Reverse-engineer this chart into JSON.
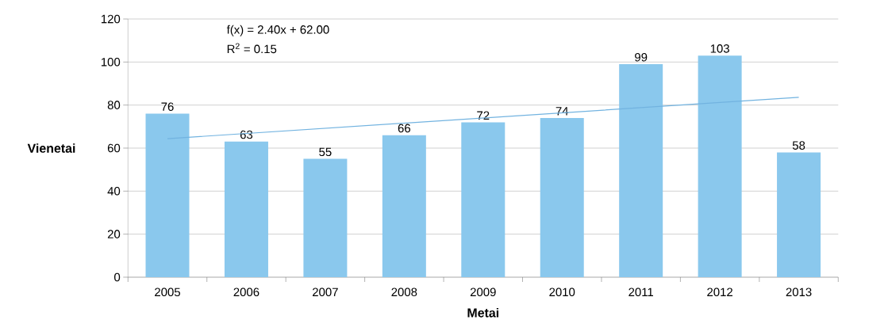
{
  "chart_data": {
    "type": "bar",
    "xlabel": "Metai",
    "ylabel": "Vienetai",
    "categories": [
      "2005",
      "2006",
      "2007",
      "2008",
      "2009",
      "2010",
      "2011",
      "2012",
      "2013"
    ],
    "series": [
      {
        "color": "#8ac8ed",
        "values": [
          76,
          63,
          55,
          66,
          72,
          74,
          99,
          103,
          58
        ],
        "value_labels": [
          "76",
          "63",
          "55",
          "66",
          "72",
          "74",
          "99",
          "103",
          "58"
        ]
      },
      {
        "type": "line",
        "color": "#72b3e0",
        "values": [
          64.4,
          66.8,
          69.2,
          71.6,
          74.0,
          76.4,
          78.8,
          81.2,
          83.6
        ]
      }
    ],
    "ylim": [
      0,
      120
    ],
    "yticks": [
      0,
      20,
      40,
      60,
      80,
      100,
      120
    ],
    "grid": "y",
    "annotations": [
      "f(x) = 2.40x + 62.00",
      "R$^{2}$ = 0.15"
    ]
  }
}
